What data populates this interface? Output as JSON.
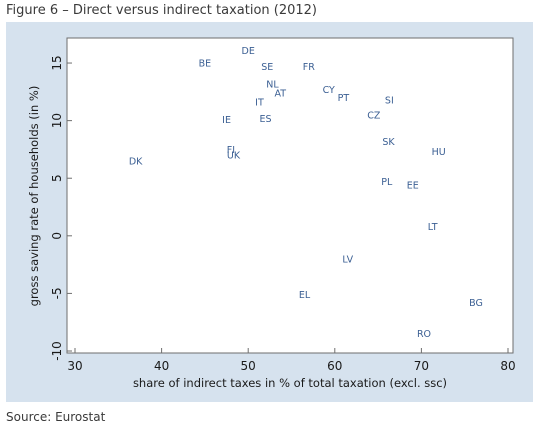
{
  "figure": {
    "title": "Figure 6 – Direct versus indirect taxation (2012)",
    "source": "Source: Eurostat"
  },
  "chart_data": {
    "type": "scatter",
    "xlabel": "share of indirect taxes in % of total taxation (excl. ssc)",
    "ylabel": "gross saving rate of households (in %)",
    "xlim": [
      30,
      80
    ],
    "ylim": [
      -10,
      17
    ],
    "xticks": [
      30,
      40,
      50,
      60,
      70,
      80
    ],
    "yticks": [
      -10,
      -5,
      0,
      5,
      10,
      15
    ],
    "grid": false,
    "colors": {
      "point_label": "#3b5f93",
      "background": "#d6e2ee"
    },
    "points": [
      {
        "label": "DE",
        "x": 50.0,
        "y": 16.1
      },
      {
        "label": "BE",
        "x": 45.0,
        "y": 15.0
      },
      {
        "label": "SE",
        "x": 52.2,
        "y": 14.7
      },
      {
        "label": "FR",
        "x": 57.0,
        "y": 14.7
      },
      {
        "label": "NL",
        "x": 52.8,
        "y": 13.2
      },
      {
        "label": "CY",
        "x": 59.3,
        "y": 12.7
      },
      {
        "label": "AT",
        "x": 53.7,
        "y": 12.4
      },
      {
        "label": "PT",
        "x": 61.0,
        "y": 12.0
      },
      {
        "label": "SI",
        "x": 66.3,
        "y": 11.8
      },
      {
        "label": "IT",
        "x": 51.3,
        "y": 11.6
      },
      {
        "label": "CZ",
        "x": 64.5,
        "y": 10.5
      },
      {
        "label": "IE",
        "x": 47.5,
        "y": 10.1
      },
      {
        "label": "ES",
        "x": 52.0,
        "y": 10.2
      },
      {
        "label": "SK",
        "x": 66.2,
        "y": 8.2
      },
      {
        "label": "FI",
        "x": 48.0,
        "y": 7.5
      },
      {
        "label": "UK",
        "x": 48.3,
        "y": 7.0
      },
      {
        "label": "HU",
        "x": 72.0,
        "y": 7.3
      },
      {
        "label": "DK",
        "x": 37.0,
        "y": 6.5
      },
      {
        "label": "PL",
        "x": 66.0,
        "y": 4.7
      },
      {
        "label": "EE",
        "x": 69.0,
        "y": 4.4
      },
      {
        "label": "LT",
        "x": 71.3,
        "y": 0.8
      },
      {
        "label": "LV",
        "x": 61.5,
        "y": -2.0
      },
      {
        "label": "EL",
        "x": 56.5,
        "y": -5.1
      },
      {
        "label": "BG",
        "x": 76.3,
        "y": -5.8
      },
      {
        "label": "RO",
        "x": 70.3,
        "y": -8.5
      }
    ]
  }
}
